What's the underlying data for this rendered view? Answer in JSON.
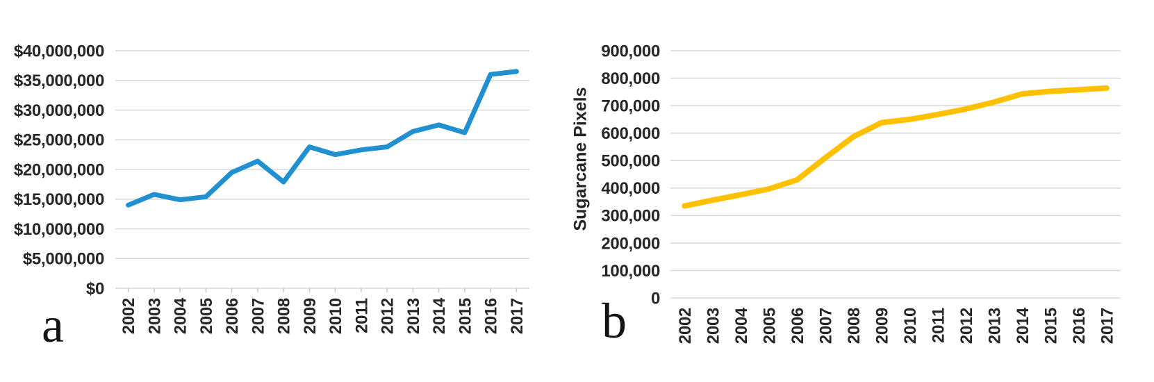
{
  "figure": {
    "background": "#FFFFFF",
    "grid_color": "#DADADA",
    "text_color": "#262626"
  },
  "chart_data": [
    {
      "type": "line",
      "panel_label": "a",
      "title": "",
      "xlabel": "",
      "ylabel": "",
      "grid": true,
      "legend": "none",
      "x_tick_marks": true,
      "x": [
        "2002",
        "2003",
        "2004",
        "2005",
        "2006",
        "2007",
        "2008",
        "2009",
        "2010",
        "2011",
        "2012",
        "2013",
        "2014",
        "2015",
        "2016",
        "2017"
      ],
      "y_axis": {
        "min": 0,
        "max": 40000000,
        "tick_step": 5000000,
        "tick_values": [
          40000000,
          35000000,
          30000000,
          25000000,
          20000000,
          15000000,
          10000000,
          5000000,
          0
        ],
        "tick_labels": [
          "$40,000,000",
          "$35,000,000",
          "$30,000,000",
          "$25,000,000",
          "$20,000,000",
          "$15,000,000",
          "$10,000,000",
          "$5,000,000",
          "$0"
        ]
      },
      "series": [
        {
          "color": "#2190D0",
          "values": [
            14000000,
            15800000,
            14900000,
            15400000,
            19500000,
            21400000,
            17900000,
            23800000,
            22500000,
            23300000,
            23800000,
            26400000,
            27500000,
            26200000,
            36000000,
            36500000
          ]
        }
      ]
    },
    {
      "type": "line",
      "panel_label": "b",
      "title": "",
      "xlabel": "",
      "ylabel": "Sugarcane Pixels",
      "grid": true,
      "legend": "none",
      "x_tick_marks": false,
      "x": [
        "2002",
        "2003",
        "2004",
        "2005",
        "2006",
        "2007",
        "2008",
        "2009",
        "2010",
        "2011",
        "2012",
        "2013",
        "2014",
        "2015",
        "2016",
        "2017"
      ],
      "y_axis": {
        "min": 0,
        "max": 900000,
        "tick_step": 100000,
        "tick_values": [
          900000,
          800000,
          700000,
          600000,
          500000,
          400000,
          300000,
          200000,
          100000,
          0
        ],
        "tick_labels": [
          "900,000",
          "800,000",
          "700,000",
          "600,000",
          "500,000",
          "400,000",
          "300,000",
          "200,000",
          "100,000",
          "0"
        ]
      },
      "series": [
        {
          "color": "#FFC000",
          "values": [
            335000,
            356000,
            376000,
            397000,
            430000,
            510000,
            587000,
            638000,
            650000,
            668000,
            688000,
            713000,
            743000,
            752000,
            758000,
            764000
          ]
        }
      ]
    }
  ]
}
